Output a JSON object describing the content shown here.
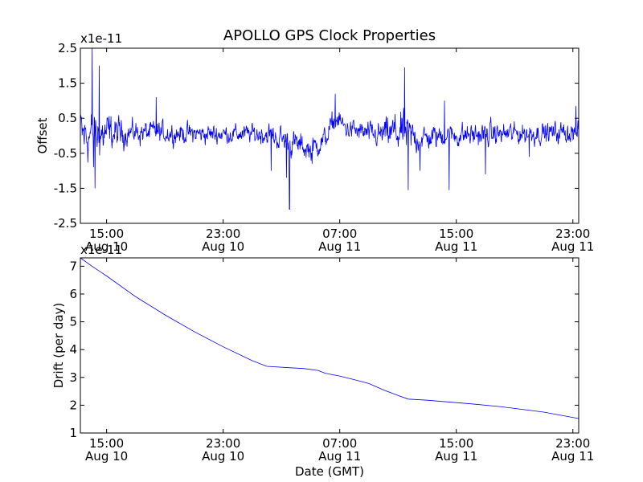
{
  "chart_data": {
    "title": "APOLLO GPS Clock Properties",
    "xlabel": "Date (GMT)",
    "x_ticks": [
      {
        "t": 15,
        "time": "15:00",
        "date": "Aug 10"
      },
      {
        "t": 23,
        "time": "23:00",
        "date": "Aug 10"
      },
      {
        "t": 31,
        "time": "07:00",
        "date": "Aug 11"
      },
      {
        "t": 39,
        "time": "15:00",
        "date": "Aug 11"
      },
      {
        "t": 47,
        "time": "23:00",
        "date": "Aug 11"
      }
    ],
    "xlim_hours": [
      13.2,
      47.4
    ],
    "panels": [
      {
        "type": "line",
        "name": "offset",
        "ylabel": "Offset",
        "multiplier": "x1e-11",
        "ylim": [
          -2.5,
          2.5
        ],
        "yticks": [
          "2.5",
          "1.5",
          "0.5",
          "-0.5",
          "-1.5",
          "-2.5"
        ],
        "ytick_values": [
          2.5,
          1.5,
          0.5,
          -0.5,
          -1.5,
          -2.5
        ],
        "color": "#0000ff",
        "noise_anchors": [
          [
            13.2,
            1.1
          ],
          [
            14.5,
            0.9
          ],
          [
            16.5,
            0.45
          ],
          [
            18.0,
            0.45
          ],
          [
            20.0,
            0.4
          ],
          [
            24.5,
            0.35
          ],
          [
            26.5,
            0.45
          ],
          [
            27.5,
            0.55
          ],
          [
            28.5,
            0.45
          ],
          [
            30.0,
            0.45
          ],
          [
            31.5,
            0.4
          ],
          [
            33.5,
            0.45
          ],
          [
            34.5,
            0.7
          ],
          [
            35.5,
            0.85
          ],
          [
            36.5,
            0.5
          ],
          [
            38.0,
            0.45
          ],
          [
            40.0,
            0.45
          ],
          [
            42.0,
            0.45
          ],
          [
            45.0,
            0.4
          ],
          [
            47.4,
            0.45
          ]
        ],
        "offset_anchors": [
          [
            13.2,
            0.0
          ],
          [
            17.0,
            0.1
          ],
          [
            22.0,
            0.05
          ],
          [
            26.0,
            0.05
          ],
          [
            28.0,
            -0.25
          ],
          [
            29.0,
            -0.4
          ],
          [
            30.0,
            -0.1
          ],
          [
            30.7,
            0.5
          ],
          [
            31.5,
            0.2
          ],
          [
            33.5,
            0.0
          ],
          [
            35.0,
            0.1
          ],
          [
            36.5,
            -0.1
          ],
          [
            38.0,
            0.0
          ],
          [
            42.0,
            0.05
          ],
          [
            47.4,
            0.1
          ]
        ],
        "spikes": [
          [
            14.0,
            2.5
          ],
          [
            14.2,
            -1.5
          ],
          [
            14.5,
            2.0
          ],
          [
            14.1,
            -0.9
          ],
          [
            18.4,
            1.1
          ],
          [
            26.3,
            -1.0
          ],
          [
            27.55,
            -2.1
          ],
          [
            27.35,
            -1.2
          ],
          [
            29.1,
            -0.8
          ],
          [
            30.7,
            1.2
          ],
          [
            35.45,
            1.95
          ],
          [
            35.7,
            -1.55
          ],
          [
            36.5,
            -1.0
          ],
          [
            38.5,
            -1.55
          ],
          [
            41.0,
            -1.1
          ],
          [
            38.2,
            1.0
          ],
          [
            44.0,
            -0.6
          ],
          [
            47.2,
            0.85
          ]
        ]
      },
      {
        "type": "line",
        "name": "drift",
        "ylabel": "Drift (per day)",
        "multiplier": "x1e-11",
        "ylim": [
          1,
          7.3
        ],
        "yticks": [
          "7",
          "6",
          "5",
          "4",
          "3",
          "2",
          "1"
        ],
        "ytick_values": [
          7,
          6,
          5,
          4,
          3,
          2,
          1
        ],
        "color": "#0000ff",
        "x_hours": [
          13.2,
          14.0,
          15.0,
          17.0,
          19.0,
          21.0,
          23.0,
          25.0,
          26.0,
          27.5,
          28.5,
          29.5,
          30.0,
          31.0,
          32.0,
          33.0,
          34.0,
          35.0,
          35.7,
          37.0,
          40.0,
          42.0,
          45.0,
          47.4
        ],
        "values": [
          7.3,
          7.0,
          6.65,
          5.9,
          5.25,
          4.65,
          4.1,
          3.6,
          3.4,
          3.35,
          3.32,
          3.25,
          3.15,
          3.05,
          2.92,
          2.78,
          2.55,
          2.35,
          2.22,
          2.18,
          2.05,
          1.95,
          1.75,
          1.52
        ]
      }
    ]
  }
}
